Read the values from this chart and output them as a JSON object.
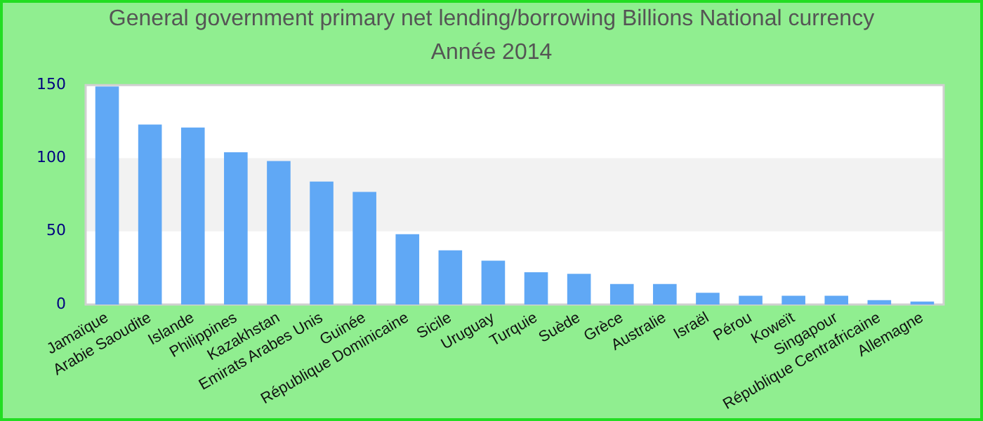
{
  "chart_data": {
    "type": "bar",
    "title": "General government primary net lending/borrowing Billions National currency",
    "subtitle": "Année 2014",
    "categories": [
      "Jamaïque",
      "Arabie Saoudite",
      "Islande",
      "Philippines",
      "Kazakhstan",
      "Emirats Arabes Unis",
      "Guinée",
      "République Dominicaine",
      "Sicile",
      "Uruguay",
      "Turquie",
      "Suède",
      "Grèce",
      "Australie",
      "Israël",
      "Pérou",
      "Koweït",
      "Singapour",
      "République Centrafricaine",
      "Allemagne"
    ],
    "values": [
      149,
      123,
      121,
      104,
      98,
      84,
      77,
      48,
      37,
      30,
      22,
      21,
      14,
      14,
      8,
      6,
      6,
      6,
      3,
      2
    ],
    "color": "#60a8f5",
    "ylim": [
      0,
      150
    ],
    "yticks": [
      0,
      50,
      100,
      150
    ],
    "grid": false,
    "bands": [
      {
        "axis": "y",
        "from": 50,
        "to": 100,
        "color": "#f2f2f2"
      }
    ]
  }
}
